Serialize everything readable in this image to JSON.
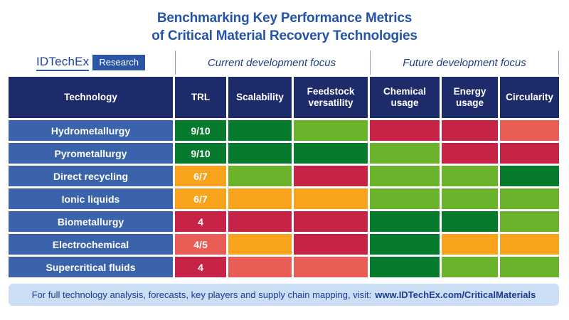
{
  "title": {
    "line1": "Benchmarking Key Performance Metrics",
    "line2": "of Critical Material Recovery Technologies"
  },
  "brand": {
    "name": "IDTechEx",
    "badge": "Research"
  },
  "group_headers": {
    "current": "Current development focus",
    "future": "Future development focus"
  },
  "columns": [
    "Technology",
    "TRL",
    "Scalability",
    "Feedstock versatility",
    "Chemical usage",
    "Energy usage",
    "Circularity"
  ],
  "rows": [
    {
      "technology": "Hydrometallurgy",
      "trl": "9/10",
      "trl_color": "darkgreen",
      "ratings": [
        "darkgreen",
        "lightgreen",
        "red",
        "red",
        "lightred"
      ]
    },
    {
      "technology": "Pyrometallurgy",
      "trl": "9/10",
      "trl_color": "darkgreen",
      "ratings": [
        "darkgreen",
        "darkgreen",
        "lightgreen",
        "red",
        "red"
      ]
    },
    {
      "technology": "Direct recycling",
      "trl": "6/7",
      "trl_color": "orange",
      "ratings": [
        "lightgreen",
        "red",
        "lightgreen",
        "lightgreen",
        "darkgreen"
      ]
    },
    {
      "technology": "Ionic liquids",
      "trl": "6/7",
      "trl_color": "orange",
      "ratings": [
        "orange",
        "orange",
        "lightgreen",
        "lightgreen",
        "lightgreen"
      ]
    },
    {
      "technology": "Biometallurgy",
      "trl": "4",
      "trl_color": "red",
      "ratings": [
        "red",
        "red",
        "darkgreen",
        "darkgreen",
        "lightgreen"
      ]
    },
    {
      "technology": "Electrochemical",
      "trl": "4/5",
      "trl_color": "lightred",
      "ratings": [
        "orange",
        "red",
        "darkgreen",
        "orange",
        "orange"
      ]
    },
    {
      "technology": "Supercritical fluids",
      "trl": "4",
      "trl_color": "red",
      "ratings": [
        "lightred",
        "lightred",
        "darkgreen",
        "lightgreen",
        "lightgreen"
      ]
    }
  ],
  "colors": {
    "darkgreen": "#067B2E",
    "lightgreen": "#6BB32B",
    "orange": "#F9A21B",
    "red": "#C72347",
    "lightred": "#E95D56",
    "navy": "#1D2B6B",
    "row_blue": "#3A63AC",
    "title_blue": "#2553A8",
    "footer_bg": "#CBDEF6",
    "footer_text": "#1C3C8E"
  },
  "footer": {
    "text": "For full technology analysis, forecasts, key players and supply chain mapping, visit:",
    "link": "www.IDTechEx.com/CriticalMaterials"
  },
  "chart_data": {
    "type": "heatmap",
    "title": "Benchmarking Key Performance Metrics of Critical Material Recovery Technologies",
    "column_groups": [
      {
        "label": "Current development focus",
        "columns": [
          "TRL",
          "Scalability",
          "Feedstock versatility"
        ]
      },
      {
        "label": "Future development focus",
        "columns": [
          "Chemical usage",
          "Energy usage",
          "Circularity"
        ]
      }
    ],
    "categories": [
      "Hydrometallurgy",
      "Pyrometallurgy",
      "Direct recycling",
      "Ionic liquids",
      "Biometallurgy",
      "Electrochemical",
      "Supercritical fluids"
    ],
    "trl_values": [
      "9/10",
      "9/10",
      "6/7",
      "6/7",
      "4",
      "4/5",
      "4"
    ],
    "cell_colors": {
      "Hydrometallurgy": {
        "TRL": "darkgreen",
        "Scalability": "darkgreen",
        "Feedstock versatility": "lightgreen",
        "Chemical usage": "red",
        "Energy usage": "red",
        "Circularity": "lightred"
      },
      "Pyrometallurgy": {
        "TRL": "darkgreen",
        "Scalability": "darkgreen",
        "Feedstock versatility": "darkgreen",
        "Chemical usage": "lightgreen",
        "Energy usage": "red",
        "Circularity": "red"
      },
      "Direct recycling": {
        "TRL": "orange",
        "Scalability": "lightgreen",
        "Feedstock versatility": "red",
        "Chemical usage": "lightgreen",
        "Energy usage": "lightgreen",
        "Circularity": "darkgreen"
      },
      "Ionic liquids": {
        "TRL": "orange",
        "Scalability": "orange",
        "Feedstock versatility": "orange",
        "Chemical usage": "lightgreen",
        "Energy usage": "lightgreen",
        "Circularity": "lightgreen"
      },
      "Biometallurgy": {
        "TRL": "red",
        "Scalability": "red",
        "Feedstock versatility": "red",
        "Chemical usage": "darkgreen",
        "Energy usage": "darkgreen",
        "Circularity": "lightgreen"
      },
      "Electrochemical": {
        "TRL": "lightred",
        "Scalability": "orange",
        "Feedstock versatility": "red",
        "Chemical usage": "darkgreen",
        "Energy usage": "orange",
        "Circularity": "orange"
      },
      "Supercritical fluids": {
        "TRL": "red",
        "Scalability": "lightred",
        "Feedstock versatility": "lightred",
        "Chemical usage": "darkgreen",
        "Energy usage": "lightgreen",
        "Circularity": "lightgreen"
      }
    },
    "color_hex": {
      "darkgreen": "#067B2E",
      "lightgreen": "#6BB32B",
      "orange": "#F9A21B",
      "red": "#C72347",
      "lightred": "#E95D56"
    }
  }
}
